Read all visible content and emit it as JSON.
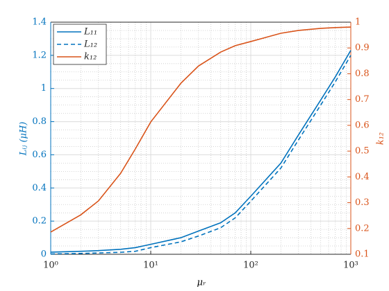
{
  "chart_data": {
    "type": "line",
    "x_label": "μᵣ",
    "y_label": "Lᵢⱼ (μH)",
    "y2_label": "k₁₂",
    "x": [
      1,
      2,
      3,
      5,
      7,
      10,
      20,
      30,
      50,
      70,
      100,
      200,
      300,
      500,
      700,
      1000
    ],
    "series": [
      {
        "name": "L₁₁",
        "color": "#0072bd",
        "dash": false,
        "axis": "y",
        "values": [
          0.013,
          0.018,
          0.022,
          0.03,
          0.04,
          0.06,
          0.1,
          0.14,
          0.19,
          0.25,
          0.35,
          0.55,
          0.72,
          0.93,
          1.07,
          1.23
        ]
      },
      {
        "name": "L₁₂",
        "color": "#0072bd",
        "dash": true,
        "axis": "y",
        "values": [
          0.002,
          0.005,
          0.008,
          0.012,
          0.018,
          0.04,
          0.075,
          0.11,
          0.16,
          0.22,
          0.32,
          0.52,
          0.69,
          0.9,
          1.04,
          1.2
        ]
      },
      {
        "name": "k₁₂",
        "color": "#d95319",
        "dash": false,
        "axis": "y2",
        "values": [
          0.186,
          0.253,
          0.307,
          0.414,
          0.508,
          0.613,
          0.763,
          0.83,
          0.884,
          0.909,
          0.925,
          0.957,
          0.968,
          0.976,
          0.979,
          0.981
        ]
      }
    ],
    "xlim": [
      1,
      1000
    ],
    "x_log": true,
    "xticks": [
      {
        "value": 1,
        "label": "10⁰"
      },
      {
        "value": 10,
        "label": "10¹"
      },
      {
        "value": 100,
        "label": "10²"
      },
      {
        "value": 1000,
        "label": "10³"
      }
    ],
    "ylim": [
      0,
      1.4
    ],
    "yticks": [
      0,
      0.2,
      0.4,
      0.6,
      0.8,
      1,
      1.2,
      1.4
    ],
    "y2lim": [
      0.1,
      1
    ],
    "y2ticks": [
      0.1,
      0.2,
      0.3,
      0.4,
      0.5,
      0.6,
      0.7,
      0.8,
      0.9,
      1
    ],
    "grid": true,
    "minor_grid": true,
    "legend": "top-left"
  }
}
